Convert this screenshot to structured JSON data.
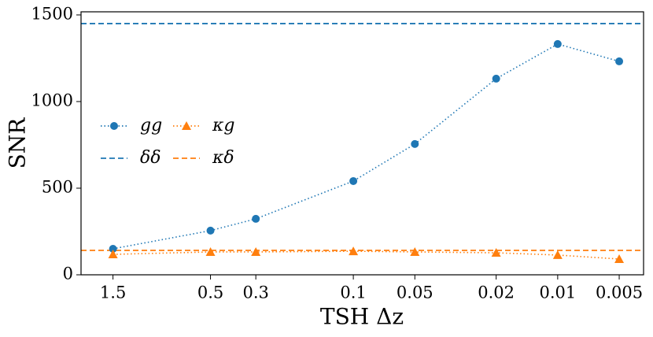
{
  "chart_data": {
    "type": "line",
    "xlabel": "TSH Δz",
    "ylabel": "SNR",
    "x": [
      1.5,
      0.5,
      0.3,
      0.1,
      0.05,
      0.02,
      0.01,
      0.005
    ],
    "xscale": "log",
    "xlim": [
      2.15,
      0.0038
    ],
    "xticks": [
      1.5,
      0.5,
      0.3,
      0.1,
      0.05,
      0.02,
      0.01,
      0.005
    ],
    "ylim": [
      0,
      1518
    ],
    "yticks": [
      0,
      500,
      1000,
      1500
    ],
    "grid": false,
    "legend": "center left",
    "series": [
      {
        "name": "gg",
        "color": "#1f77b4",
        "marker": "circle",
        "linestyle": "dotted",
        "values": [
          150,
          255,
          323,
          541,
          755,
          1132,
          1332,
          1232
        ]
      },
      {
        "name": "κg",
        "color": "#ff7f0e",
        "marker": "triangle",
        "linestyle": "dotted",
        "values": [
          118,
          132,
          132,
          136,
          132,
          127,
          114,
          91
        ]
      }
    ],
    "hlines": [
      {
        "name": "δδ",
        "color": "#1f77b4",
        "linestyle": "dashed",
        "value": 1450
      },
      {
        "name": "κδ",
        "color": "#ff7f0e",
        "linestyle": "dashed",
        "value": 141
      }
    ]
  }
}
